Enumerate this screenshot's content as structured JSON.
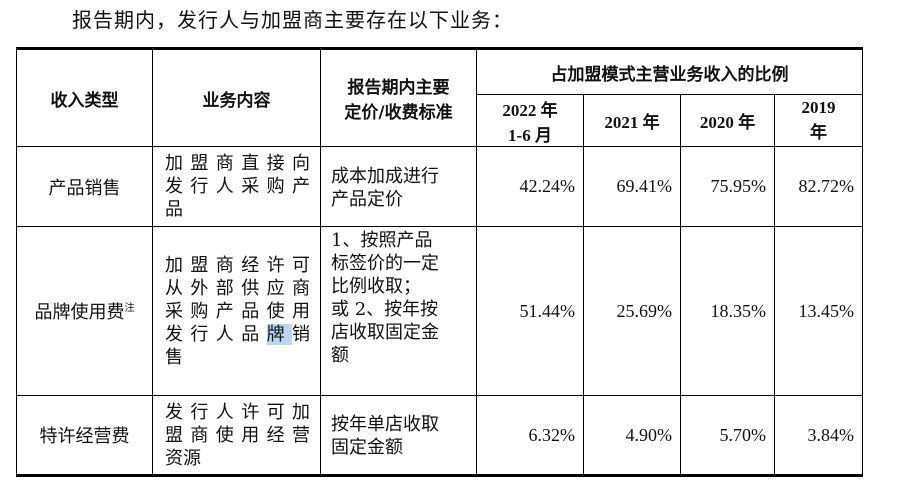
{
  "intro": "报告期内，发行人与加盟商主要存在以下业务：",
  "header": {
    "type": "收入类型",
    "content": "业务内容",
    "standard_l1": "报告期内主要",
    "standard_l2": "定价/收费标准",
    "ratio_group": "占加盟模式主营业务收入的比例",
    "years": [
      {
        "l1": "2022 年",
        "l2": "1-6 月"
      },
      {
        "l1": "2021 年",
        "l2": ""
      },
      {
        "l1": "2020 年",
        "l2": ""
      },
      {
        "l1": "2019",
        "l2": "年"
      }
    ]
  },
  "rows": [
    {
      "type": "产品销售",
      "type_note": "",
      "content_lines": [
        "加盟商直接向",
        "发行人采购产",
        "品"
      ],
      "standard_lines": [
        "成本加成进行",
        "产品定价"
      ],
      "values": [
        "42.24%",
        "69.41%",
        "75.95%",
        "82.72%"
      ]
    },
    {
      "type": "品牌使用费",
      "type_note": "注",
      "content_lines": [
        "加盟商经许可",
        "从外部供应商",
        "采购产品使用",
        "发行人品牌销",
        "售"
      ],
      "standard_lines": [
        "1、按照产品",
        "标签价的一定",
        "比例收取；",
        "或 2、按年按",
        "店收取固定金",
        "额"
      ],
      "values": [
        "51.44%",
        "25.69%",
        "18.35%",
        "13.45%"
      ]
    },
    {
      "type": "特许经营费",
      "type_note": "",
      "content_lines": [
        "发行人许可加",
        "盟商使用经营",
        "资源"
      ],
      "standard_lines": [
        "按年单店收取",
        "固定金额"
      ],
      "values": [
        "6.32%",
        "4.90%",
        "5.70%",
        "3.84%"
      ]
    }
  ]
}
